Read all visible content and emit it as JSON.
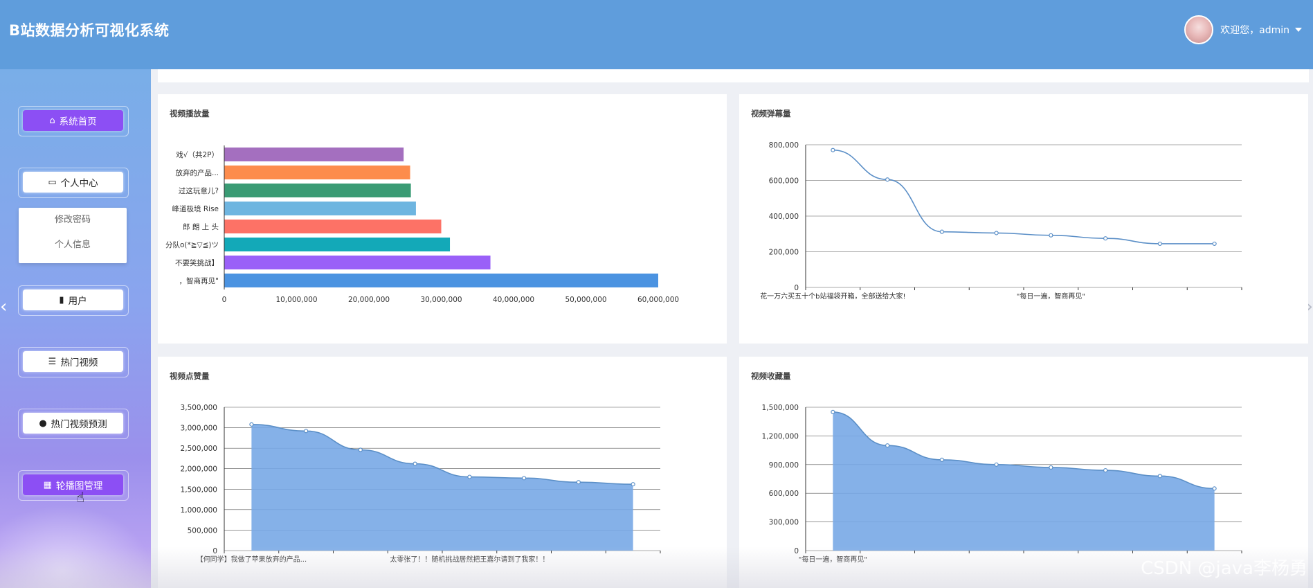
{
  "app": {
    "title": "B站数据分析可视化系统"
  },
  "user": {
    "greeting": "欢迎您，admin"
  },
  "sidebar": {
    "items": [
      {
        "label": "系统首页",
        "icon": "home-icon",
        "active": true
      },
      {
        "label": "个人中心",
        "icon": "profile-card-icon",
        "active": false
      },
      {
        "label": "用户",
        "icon": "user-book-icon",
        "active": false
      },
      {
        "label": "热门视频",
        "icon": "list-icon",
        "active": false
      },
      {
        "label": "热门视频预测",
        "icon": "person-icon",
        "active": false
      },
      {
        "label": "轮播图管理",
        "icon": "grid-icon",
        "active": true
      }
    ],
    "submenu": [
      "修改密码",
      "个人信息"
    ]
  },
  "watermark": "CSDN @java李杨勇",
  "chart_data": [
    {
      "title": "视频播放量",
      "type": "bar",
      "orientation": "horizontal",
      "categories": [
        "戏√（共2P）",
        "放弃的产品...",
        "过这玩意儿?",
        "峰道极境 Rise",
        "郎 朗 上 头",
        "分队o(*≧▽≦)ツ",
        "不要笑挑战】",
        "，智商再见\""
      ],
      "values": [
        24800000,
        25700000,
        25800000,
        26500000,
        30000000,
        31200000,
        36800000,
        60000000
      ],
      "colors": [
        "#a46fbf",
        "#fd8c4c",
        "#3a9b74",
        "#6eb5e0",
        "#fd7266",
        "#13a9b8",
        "#9a60f8",
        "#4b93e1"
      ],
      "xticks": [
        "0",
        "10,000,000",
        "20,000,000",
        "30,000,000",
        "40,000,000",
        "50,000,000",
        "60,000,000"
      ],
      "xlim": [
        0,
        60000000
      ]
    },
    {
      "title": "视频弹幕量",
      "type": "line",
      "x_labels": [
        "花一万六买五十个b站福袋开箱，全部送给大家!",
        "\"每日一遍，智商再见\""
      ],
      "values": [
        770000,
        605000,
        312000,
        305000,
        292000,
        275000,
        245000,
        245000
      ],
      "yticks": [
        "0",
        "200,000",
        "400,000",
        "600,000",
        "800,000"
      ],
      "ylim": [
        0,
        800000
      ],
      "color": "#5b8fc7"
    },
    {
      "title": "视频点赞量",
      "type": "area",
      "x_labels": [
        "【何同学】我做了苹果放弃的产品...",
        "太零张了！！随机挑战居然把王嘉尔请到了我家！！"
      ],
      "values": [
        3080000,
        2920000,
        2460000,
        2120000,
        1800000,
        1770000,
        1670000,
        1620000
      ],
      "yticks": [
        "0",
        "500,000",
        "1,000,000",
        "1,500,000",
        "2,000,000",
        "2,500,000",
        "3,000,000",
        "3,500,000"
      ],
      "ylim": [
        0,
        3500000
      ],
      "color": "#5b8fc7"
    },
    {
      "title": "视频收藏量",
      "type": "area",
      "x_labels": [
        "\"每日一遍，智商再见\""
      ],
      "values": [
        1450000,
        1100000,
        950000,
        900000,
        870000,
        840000,
        780000,
        650000
      ],
      "yticks": [
        "0",
        "300,000",
        "600,000",
        "900,000",
        "1,200,000",
        "1,500,000"
      ],
      "ylim": [
        0,
        1500000
      ],
      "color": "#5b8fc7"
    }
  ]
}
